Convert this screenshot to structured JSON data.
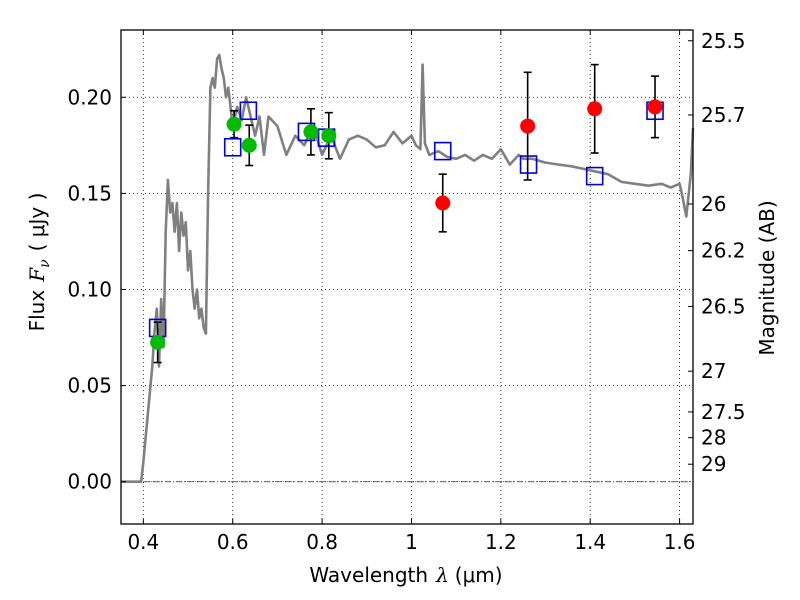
{
  "chart_data": {
    "type": "scatter",
    "title": "",
    "xlabel": {
      "text": "Wavelength",
      "symbol": "λ",
      "unit": "(μm)"
    },
    "ylabel": {
      "text": "Flux",
      "symbol": "F",
      "subscript": "ν",
      "unit": "( μJy )"
    },
    "ylabel_right": "Magnitude (AB)",
    "xlim": [
      0.35,
      1.63
    ],
    "ylim": [
      -0.022,
      0.235
    ],
    "grid": true,
    "grid_style": "dotted",
    "x_ticks": [
      0.4,
      0.6,
      0.8,
      1.0,
      1.2,
      1.4,
      1.6
    ],
    "x_tick_labels": [
      "0.4",
      "0.6",
      "0.8",
      "1",
      "1.2",
      "1.4",
      "1.6"
    ],
    "y_ticks": [
      0.0,
      0.05,
      0.1,
      0.15,
      0.2
    ],
    "y_tick_labels": [
      "0.00",
      "0.05",
      "0.10",
      "0.15",
      "0.20"
    ],
    "right_ticks": [
      {
        "label": "25.5",
        "flux": 0.2294
      },
      {
        "label": "25.7",
        "flux": 0.1908
      },
      {
        "label": "26",
        "flux": 0.1445
      },
      {
        "label": "26.2",
        "flux": 0.1202
      },
      {
        "label": "26.5",
        "flux": 0.0912
      },
      {
        "label": "27",
        "flux": 0.0575
      },
      {
        "label": "27.5",
        "flux": 0.0363
      },
      {
        "label": "28",
        "flux": 0.0229
      },
      {
        "label": "29",
        "flux": 0.0091
      }
    ],
    "colors": {
      "sed": "#808080",
      "green": "#00bb00",
      "red": "#ff0000",
      "box": "#0000dd",
      "errorbar": "#000000",
      "zero_line": "#555555"
    },
    "sed_line": {
      "name": "",
      "x": [
        0.35,
        0.395,
        0.4,
        0.41,
        0.42,
        0.425,
        0.43,
        0.435,
        0.44,
        0.445,
        0.45,
        0.455,
        0.46,
        0.465,
        0.47,
        0.475,
        0.48,
        0.485,
        0.49,
        0.495,
        0.5,
        0.505,
        0.51,
        0.515,
        0.52,
        0.525,
        0.53,
        0.535,
        0.54,
        0.545,
        0.55,
        0.555,
        0.56,
        0.565,
        0.57,
        0.575,
        0.58,
        0.585,
        0.59,
        0.6,
        0.61,
        0.62,
        0.63,
        0.64,
        0.65,
        0.66,
        0.67,
        0.68,
        0.7,
        0.72,
        0.74,
        0.76,
        0.78,
        0.8,
        0.82,
        0.84,
        0.86,
        0.88,
        0.9,
        0.92,
        0.94,
        0.96,
        0.98,
        1.0,
        1.01,
        1.02,
        1.025,
        1.03,
        1.04,
        1.06,
        1.08,
        1.1,
        1.12,
        1.14,
        1.16,
        1.18,
        1.2,
        1.22,
        1.24,
        1.25,
        1.27,
        1.3,
        1.33,
        1.36,
        1.4,
        1.44,
        1.47,
        1.5,
        1.53,
        1.56,
        1.58,
        1.59,
        1.6,
        1.605,
        1.615,
        1.625,
        1.63
      ],
      "y": [
        0.0,
        0.0,
        0.01,
        0.035,
        0.06,
        0.078,
        0.09,
        0.06,
        0.095,
        0.07,
        0.13,
        0.157,
        0.14,
        0.145,
        0.13,
        0.145,
        0.12,
        0.14,
        0.128,
        0.135,
        0.11,
        0.12,
        0.1,
        0.09,
        0.1,
        0.085,
        0.09,
        0.08,
        0.077,
        0.15,
        0.205,
        0.21,
        0.205,
        0.22,
        0.222,
        0.215,
        0.21,
        0.2,
        0.205,
        0.185,
        0.195,
        0.188,
        0.2,
        0.19,
        0.18,
        0.19,
        0.17,
        0.19,
        0.185,
        0.17,
        0.18,
        0.175,
        0.185,
        0.17,
        0.18,
        0.168,
        0.178,
        0.18,
        0.178,
        0.174,
        0.175,
        0.182,
        0.176,
        0.18,
        0.175,
        0.173,
        0.217,
        0.176,
        0.17,
        0.172,
        0.169,
        0.168,
        0.17,
        0.167,
        0.17,
        0.168,
        0.173,
        0.165,
        0.17,
        0.168,
        0.168,
        0.166,
        0.165,
        0.164,
        0.162,
        0.16,
        0.156,
        0.155,
        0.154,
        0.155,
        0.153,
        0.154,
        0.155,
        0.15,
        0.138,
        0.16,
        0.184
      ]
    },
    "green_points": {
      "x": [
        0.432,
        0.603,
        0.637,
        0.775,
        0.815
      ],
      "y": [
        0.0725,
        0.186,
        0.175,
        0.182,
        0.18
      ],
      "yerr": [
        0.0105,
        0.007,
        0.0105,
        0.012,
        0.012
      ]
    },
    "red_points": {
      "x": [
        1.07,
        1.26,
        1.41,
        1.545
      ],
      "y": [
        0.145,
        0.185,
        0.194,
        0.195
      ],
      "yerr": [
        0.015,
        0.028,
        0.023,
        0.016
      ]
    },
    "model_boxes": {
      "x": [
        0.432,
        0.6,
        0.635,
        0.765,
        0.81,
        1.07,
        1.262,
        1.41,
        1.545
      ],
      "y": [
        0.08,
        0.174,
        0.193,
        0.182,
        0.179,
        0.172,
        0.165,
        0.159,
        0.193
      ]
    }
  }
}
